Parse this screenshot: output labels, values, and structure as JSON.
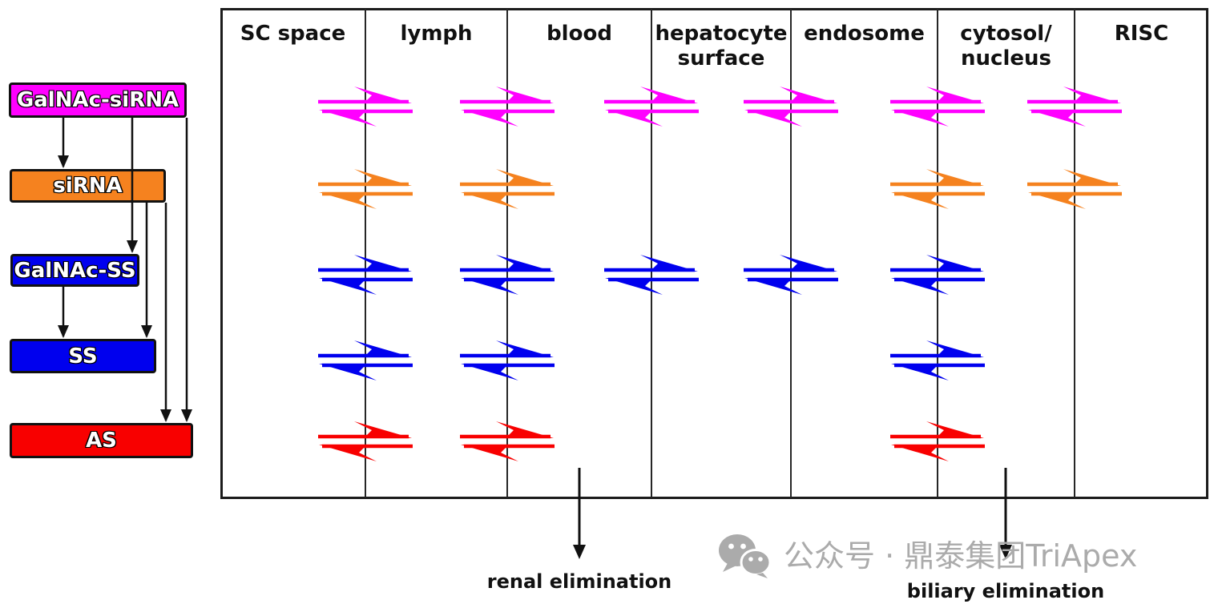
{
  "compartments": {
    "labels": [
      "SC space",
      "lymph",
      "blood",
      "hepatocyte\nsurface",
      "endosome",
      "cytosol/\nnucleus",
      "RISC"
    ]
  },
  "species": [
    {
      "name": "GalNAc-siRNA",
      "color": "#ff00ff",
      "transitions": [
        [
          0,
          1
        ],
        [
          1,
          2
        ],
        [
          2,
          3
        ],
        [
          3,
          4
        ],
        [
          4,
          5
        ],
        [
          5,
          6
        ]
      ]
    },
    {
      "name": "siRNA",
      "color": "#f5821f",
      "transitions": [
        [
          0,
          1
        ],
        [
          1,
          2
        ],
        [
          4,
          5
        ],
        [
          5,
          6
        ]
      ]
    },
    {
      "name": "GalNAc-SS",
      "color": "#0000ee",
      "transitions": [
        [
          0,
          1
        ],
        [
          1,
          2
        ],
        [
          2,
          3
        ],
        [
          3,
          4
        ],
        [
          4,
          5
        ]
      ]
    },
    {
      "name": "SS",
      "color": "#0000ee",
      "transitions": [
        [
          0,
          1
        ],
        [
          1,
          2
        ],
        [
          4,
          5
        ]
      ]
    },
    {
      "name": "AS",
      "color": "#f80000",
      "transitions": [
        [
          0,
          1
        ],
        [
          1,
          2
        ],
        [
          4,
          5
        ]
      ]
    }
  ],
  "legend": {
    "edges": [
      {
        "from": "GalNAc-siRNA",
        "to": "siRNA"
      },
      {
        "from": "GalNAc-siRNA",
        "to": "GalNAc-SS"
      },
      {
        "from": "GalNAc-siRNA",
        "to": "AS"
      },
      {
        "from": "GalNAc-SS",
        "to": "SS"
      },
      {
        "from": "siRNA",
        "to": "SS"
      },
      {
        "from": "siRNA",
        "to": "AS"
      }
    ]
  },
  "eliminations": [
    {
      "label": "renal elimination",
      "from_column": "blood",
      "column_index": 2
    },
    {
      "label": "biliary elimination",
      "from_column": "cytosol/nucleus",
      "column_index": 5
    }
  ],
  "watermark": {
    "icon": "wechat-icon",
    "text": "公众号 · 鼎泰集团TriApex",
    "color": "#ababab"
  }
}
